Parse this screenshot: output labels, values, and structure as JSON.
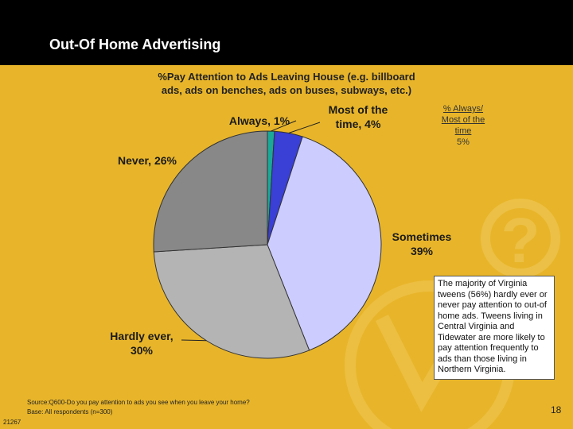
{
  "slide": {
    "title": "Out-Of Home Advertising",
    "subtitle_line1": "%Pay Attention to Ads Leaving House (e.g. billboard",
    "subtitle_line2": "ads, ads on benches, ads on buses, subways, etc.)",
    "stat_box": {
      "line1": "% Always/",
      "line2": "Most of the",
      "line3": "time",
      "value": "5%"
    },
    "callout_text": "The majority of Virginia tweens (56%) hardly ever or never pay attention to out-of home ads. Tweens living in Central Virginia and Tidewater are more likely to pay attention frequently to ads than those living in Northern Virginia.",
    "source_line1": "Source:Q600-Do you pay attention to ads you see when you leave your home?",
    "source_line2": "Base: All respondents (n=300)",
    "code": "21267",
    "page_number": "18"
  },
  "chart_data": {
    "type": "pie",
    "title": "%Pay Attention to Ads Leaving House (e.g. billboard ads, ads on benches, ads on buses, subways, etc.)",
    "slices": [
      {
        "label": "Always",
        "value": 1,
        "display": "Always, 1%",
        "color": "#1aa898"
      },
      {
        "label": "Most of the time",
        "value": 4,
        "display_l1": "Most of the",
        "display_l2": "time, 4%",
        "color": "#3a3fd6"
      },
      {
        "label": "Sometimes",
        "value": 39,
        "display_l1": "Sometimes",
        "display_l2": "39%",
        "color": "#ccccff"
      },
      {
        "label": "Hardly ever",
        "value": 30,
        "display_l1": "Hardly ever,",
        "display_l2": "30%",
        "color": "#b4b4b4"
      },
      {
        "label": "Never",
        "value": 26,
        "display": "Never, 26%",
        "color": "#888888"
      }
    ]
  }
}
